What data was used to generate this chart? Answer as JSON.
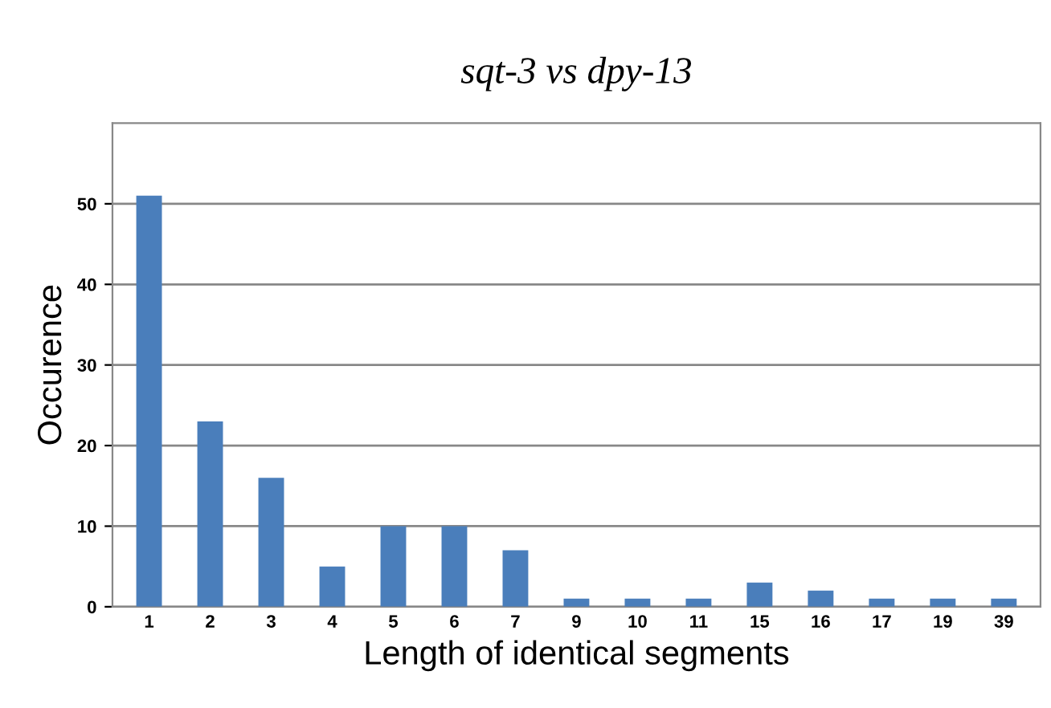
{
  "chart_data": {
    "type": "bar",
    "title": "sqt-3 vs dpy-13",
    "xlabel": "Length of identical segments",
    "ylabel": "Occurence",
    "categories": [
      "1",
      "2",
      "3",
      "4",
      "5",
      "6",
      "7",
      "9",
      "10",
      "11",
      "15",
      "16",
      "17",
      "19",
      "39"
    ],
    "values": [
      51,
      23,
      16,
      5,
      10,
      10,
      7,
      1,
      1,
      1,
      3,
      2,
      1,
      1,
      1
    ],
    "color": "#4a7ebb",
    "ylim": [
      0,
      60
    ],
    "yticks": [
      0,
      10,
      20,
      30,
      40,
      50
    ],
    "grid": "y",
    "legend": false
  }
}
